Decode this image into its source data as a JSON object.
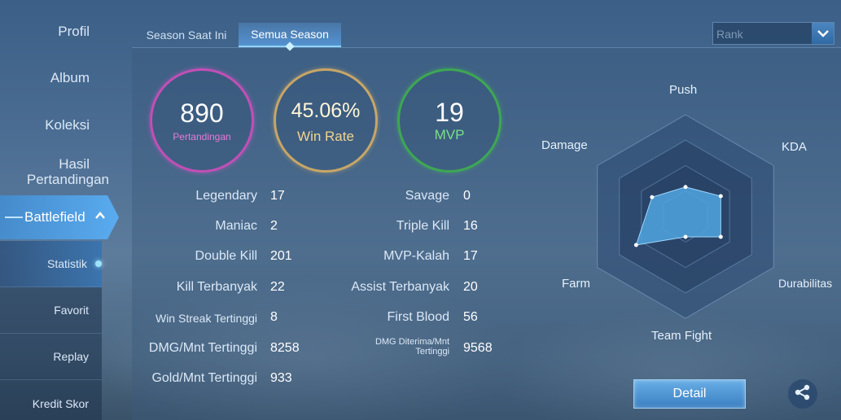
{
  "sidebar": {
    "items": [
      {
        "label": "Profil"
      },
      {
        "label": "Album"
      },
      {
        "label": "Koleksi"
      },
      {
        "label": "Hasil",
        "label2": "Pertandingan"
      }
    ],
    "battlefield": {
      "label": "Battlefield"
    },
    "subitems": [
      {
        "label": "Statistik"
      },
      {
        "label": "Favorit"
      },
      {
        "label": "Replay"
      },
      {
        "label": "Kredit Skor"
      }
    ]
  },
  "tabs": [
    {
      "label": "Season Saat Ini"
    },
    {
      "label": "Semua Season"
    }
  ],
  "filter": {
    "selected": "Rank"
  },
  "summary": {
    "matches": {
      "value": "890",
      "label": "Pertandingan"
    },
    "winrate": {
      "value": "45.06%",
      "label": "Win Rate"
    },
    "mvp": {
      "value": "19",
      "label": "MVP"
    }
  },
  "stats_left": [
    {
      "label": "Legendary",
      "value": "17"
    },
    {
      "label": "Maniac",
      "value": "2"
    },
    {
      "label": "Double Kill",
      "value": "201"
    },
    {
      "label": "Kill Terbanyak",
      "value": "22"
    },
    {
      "label": "Win Streak Tertinggi",
      "value": "8"
    },
    {
      "label": "DMG/Mnt Tertinggi",
      "value": "8258"
    },
    {
      "label": "Gold/Mnt Tertinggi",
      "value": "933"
    }
  ],
  "stats_right": [
    {
      "label": "Savage",
      "value": "0"
    },
    {
      "label": "Triple Kill",
      "value": "16"
    },
    {
      "label": "MVP-Kalah",
      "value": "17"
    },
    {
      "label": "Assist Terbanyak",
      "value": "20"
    },
    {
      "label": "First Blood",
      "value": "56"
    },
    {
      "label": "DMG Diterima/Mnt",
      "label2": "Tertinggi",
      "value": "9568"
    }
  ],
  "radar": {
    "axes": [
      "Push",
      "KDA",
      "Durabilitas",
      "Team Fight",
      "Farm",
      "Damage"
    ],
    "levels": [
      0.29,
      0.4,
      0.4,
      0.2,
      0.56,
      0.38
    ]
  },
  "buttons": {
    "detail": "Detail"
  },
  "icons": {
    "share": "share-icon",
    "dropdown": "chevron-down-icon",
    "expand": "chevron-up-icon"
  }
}
